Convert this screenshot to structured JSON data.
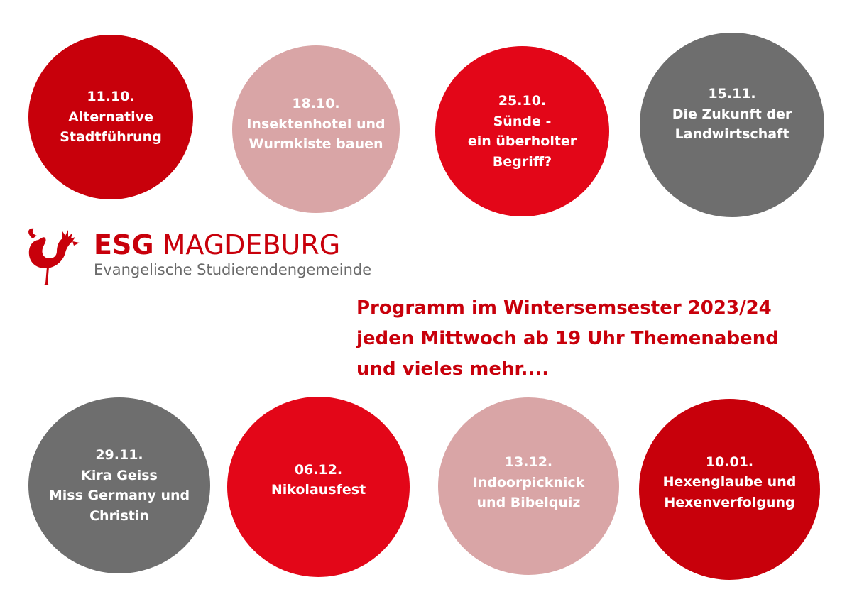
{
  "events_top": [
    {
      "date": "11.10.",
      "lines": [
        "Alternative",
        "Stadtführung"
      ],
      "color": "#c8000b"
    },
    {
      "date": "18.10.",
      "lines": [
        "Insektenhotel und",
        "Wurmkiste bauen"
      ],
      "color": "#d9a5a6"
    },
    {
      "date": "25.10.",
      "lines": [
        "Sünde -",
        "ein überholter",
        "Begriff?"
      ],
      "color": "#e30618"
    },
    {
      "date": "15.11.",
      "lines": [
        "Die Zukunft der",
        "Landwirtschaft"
      ],
      "color": "#6e6e6e"
    }
  ],
  "events_bottom": [
    {
      "date": "29.11.",
      "lines": [
        "Kira Geiss",
        "Miss Germany und",
        "Christin"
      ],
      "color": "#6e6e6e"
    },
    {
      "date": "06.12.",
      "lines": [
        "Nikolausfest"
      ],
      "color": "#e30618"
    },
    {
      "date": "13.12.",
      "lines": [
        "Indoorpicknick",
        "und Bibelquiz"
      ],
      "color": "#d9a5a6"
    },
    {
      "date": "10.01.",
      "lines": [
        "Hexenglaube und",
        "Hexenverfolgung"
      ],
      "color": "#c8000b"
    }
  ],
  "logo": {
    "name_bold": "ESG",
    "name_rest": " MAGDEBURG",
    "subtitle": "Evangelische Studierendengemeinde",
    "icon": "rooster-icon"
  },
  "program": {
    "lines": [
      "Programm im Wintersemsester 2023/24",
      "jeden Mittwoch ab 19 Uhr Themenabend",
      "und vieles mehr...."
    ]
  }
}
